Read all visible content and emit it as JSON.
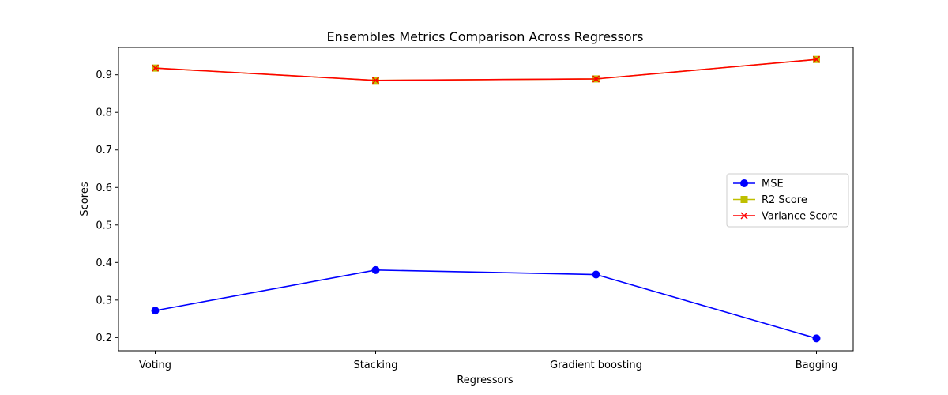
{
  "chart_data": {
    "type": "line",
    "title": "Ensembles Metrics Comparison Across Regressors",
    "xlabel": "Regressors",
    "ylabel": "Scores",
    "categories": [
      "Voting",
      "Stacking",
      "Gradient boosting",
      "Bagging"
    ],
    "ylim": [
      0.165,
      0.973
    ],
    "yticks": [
      0.2,
      0.3,
      0.4,
      0.5,
      0.6,
      0.7,
      0.8,
      0.9
    ],
    "grid": false,
    "legend_position": "center-right",
    "series": [
      {
        "name": "MSE",
        "values": [
          0.272,
          0.38,
          0.368,
          0.198
        ],
        "color": "#0000ff",
        "marker": "circle"
      },
      {
        "name": "R2 Score",
        "values": [
          0.918,
          0.885,
          0.889,
          0.941
        ],
        "color": "#bfbf00",
        "marker": "square"
      },
      {
        "name": "Variance Score",
        "values": [
          0.918,
          0.885,
          0.889,
          0.941
        ],
        "color": "#ff0000",
        "marker": "x"
      }
    ]
  }
}
